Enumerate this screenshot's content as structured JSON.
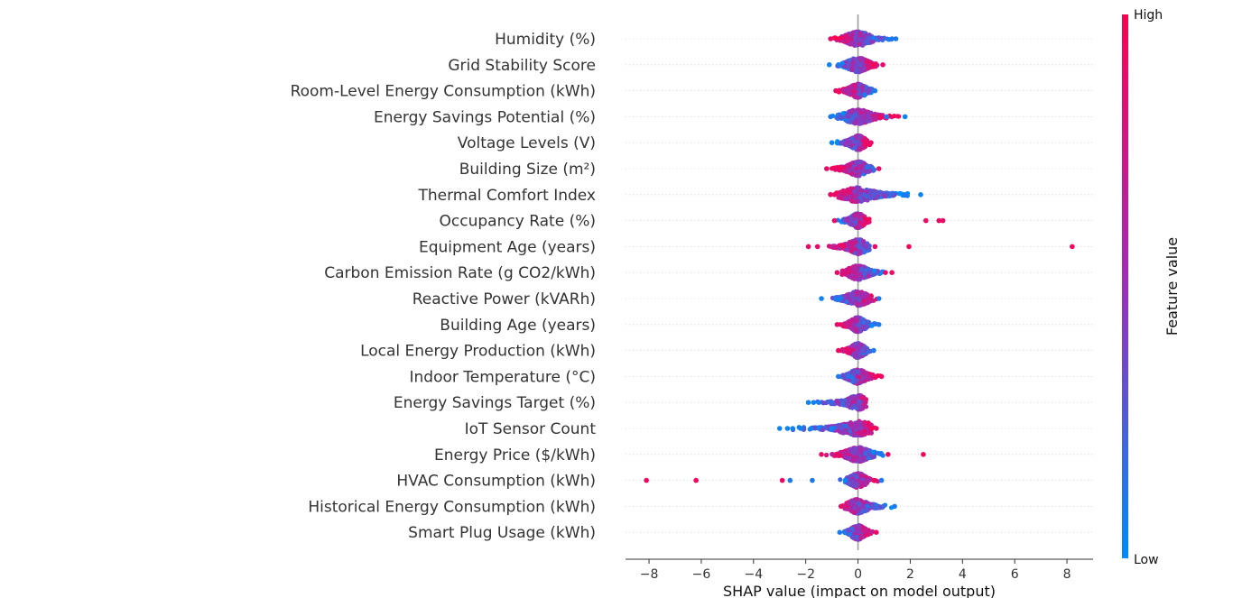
{
  "chart_data": {
    "type": "scatter",
    "subtype": "shap-beeswarm",
    "title": "",
    "xlabel": "SHAP value (impact on model output)",
    "xlim": [
      -8.9,
      9.0
    ],
    "xticks": [
      -8,
      -6,
      -4,
      -2,
      0,
      2,
      4,
      6,
      8
    ],
    "xtick_labels": [
      "−8",
      "−6",
      "−4",
      "−2",
      "0",
      "2",
      "4",
      "6",
      "8"
    ],
    "colorbar": {
      "label": "Feature value",
      "high_label": "High",
      "low_label": "Low",
      "low_color": "#008bfb",
      "mid_color": "#9a2fb8",
      "high_color": "#ff0052"
    },
    "features": [
      {
        "name": "Humidity (%)",
        "range": [
          -1.1,
          1.5
        ],
        "low_side": "right",
        "outliers": [
          [
            1.45,
            0.1
          ],
          [
            1.3,
            0.1
          ],
          [
            -1.05,
            0.9
          ]
        ]
      },
      {
        "name": "Grid Stability Score",
        "range": [
          -1.1,
          1.0
        ],
        "low_side": "left",
        "outliers": [
          [
            -1.1,
            0.05
          ],
          [
            -0.75,
            0.1
          ],
          [
            0.95,
            0.9
          ]
        ]
      },
      {
        "name": "Room-Level Energy Consumption (kWh)",
        "range": [
          -0.9,
          0.7
        ],
        "low_side": "right",
        "outliers": [
          [
            -0.85,
            0.9
          ],
          [
            0.65,
            0.1
          ]
        ]
      },
      {
        "name": "Energy Savings Potential (%)",
        "range": [
          -1.1,
          1.8
        ],
        "low_side": "left",
        "outliers": [
          [
            1.8,
            0.05
          ],
          [
            1.1,
            0.1
          ],
          [
            -1.05,
            0.1
          ],
          [
            0.85,
            0.9
          ]
        ]
      },
      {
        "name": "Voltage Levels (V)",
        "range": [
          -1.0,
          0.5
        ],
        "low_side": "left",
        "outliers": [
          [
            -1.0,
            0.05
          ],
          [
            0.5,
            0.9
          ]
        ]
      },
      {
        "name": "Building Size (m²)",
        "range": [
          -1.2,
          0.8
        ],
        "low_side": "right",
        "outliers": [
          [
            -1.2,
            0.9
          ],
          [
            0.8,
            0.9
          ],
          [
            -0.9,
            0.9
          ]
        ]
      },
      {
        "name": "Thermal Comfort Index",
        "range": [
          -1.1,
          2.4
        ],
        "low_side": "right",
        "outliers": [
          [
            2.4,
            0.05
          ],
          [
            1.8,
            0.1
          ],
          [
            -1.05,
            0.9
          ],
          [
            -0.9,
            0.9
          ]
        ]
      },
      {
        "name": "Occupancy Rate (%)",
        "range": [
          -0.9,
          0.5
        ],
        "low_side": "left",
        "outliers": [
          [
            2.6,
            0.9
          ],
          [
            3.1,
            0.9
          ],
          [
            3.25,
            0.9
          ],
          [
            -0.9,
            0.9
          ]
        ]
      },
      {
        "name": "Equipment Age (years)",
        "range": [
          -1.4,
          0.7
        ],
        "low_side": "right",
        "outliers": [
          [
            8.2,
            0.95
          ],
          [
            1.95,
            0.95
          ],
          [
            -1.9,
            0.9
          ],
          [
            -1.55,
            0.9
          ],
          [
            0.65,
            0.9
          ]
        ]
      },
      {
        "name": "Carbon Emission Rate (g CO2/kWh)",
        "range": [
          -0.8,
          1.3
        ],
        "low_side": "right",
        "outliers": [
          [
            1.3,
            0.9
          ],
          [
            1.05,
            0.9
          ],
          [
            -0.8,
            0.9
          ]
        ]
      },
      {
        "name": "Reactive Power (kVARh)",
        "range": [
          -1.4,
          0.8
        ],
        "low_side": "left",
        "outliers": [
          [
            -1.4,
            0.05
          ],
          [
            0.8,
            0.1
          ]
        ]
      },
      {
        "name": "Building Age (years)",
        "range": [
          -0.8,
          0.8
        ],
        "low_side": "right",
        "outliers": [
          [
            0.8,
            0.1
          ],
          [
            -0.8,
            0.9
          ]
        ]
      },
      {
        "name": "Local Energy Production (kWh)",
        "range": [
          -0.8,
          0.6
        ],
        "low_side": "right",
        "outliers": [
          [
            -0.75,
            0.9
          ],
          [
            0.6,
            0.1
          ]
        ]
      },
      {
        "name": "Indoor Temperature (°C)",
        "range": [
          -0.8,
          0.9
        ],
        "low_side": "left",
        "outliers": [
          [
            0.9,
            0.9
          ],
          [
            -0.75,
            0.1
          ]
        ]
      },
      {
        "name": "Energy Savings Target (%)",
        "range": [
          -1.9,
          0.4
        ],
        "low_side": "left",
        "outliers": [
          [
            -1.9,
            0.05
          ],
          [
            -1.7,
            0.05
          ],
          [
            -1.5,
            0.05
          ]
        ]
      },
      {
        "name": "IoT Sensor Count",
        "range": [
          -3.0,
          0.8
        ],
        "low_side": "left",
        "outliers": [
          [
            -3.0,
            0.05
          ],
          [
            -2.7,
            0.05
          ],
          [
            -2.5,
            0.05
          ],
          [
            -2.2,
            0.05
          ],
          [
            -1.8,
            0.05
          ],
          [
            -1.0,
            0.05
          ],
          [
            0.7,
            0.9
          ]
        ]
      },
      {
        "name": "Energy Price ($/kWh)",
        "range": [
          -1.4,
          1.1
        ],
        "low_side": "right",
        "outliers": [
          [
            2.5,
            0.95
          ],
          [
            1.15,
            0.9
          ],
          [
            -1.4,
            0.9
          ],
          [
            0.9,
            0.1
          ]
        ]
      },
      {
        "name": "HVAC Consumption (kWh)",
        "range": [
          -0.8,
          0.9
        ],
        "low_side": "left",
        "outliers": [
          [
            -8.1,
            0.95
          ],
          [
            -6.2,
            0.95
          ],
          [
            -2.9,
            0.9
          ],
          [
            -2.6,
            0.1
          ],
          [
            -1.75,
            0.1
          ],
          [
            0.9,
            0.1
          ]
        ]
      },
      {
        "name": "Historical Energy Consumption (kWh)",
        "range": [
          -0.7,
          1.4
        ],
        "low_side": "right",
        "outliers": [
          [
            1.4,
            0.1
          ],
          [
            -0.65,
            0.9
          ]
        ]
      },
      {
        "name": "Smart Plug Usage (kWh)",
        "range": [
          -0.7,
          0.7
        ],
        "low_side": "left",
        "outliers": [
          [
            0.7,
            0.9
          ],
          [
            -0.7,
            0.1
          ]
        ]
      }
    ]
  }
}
